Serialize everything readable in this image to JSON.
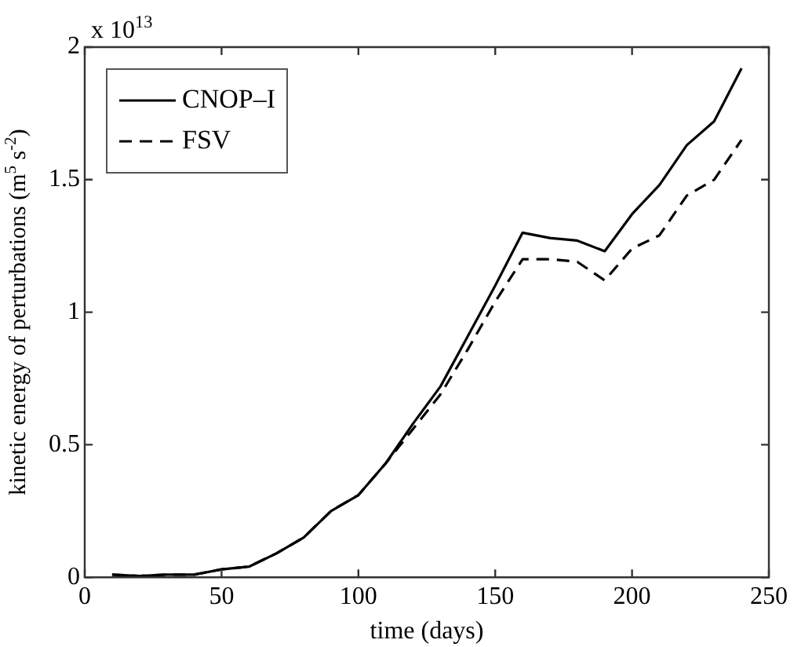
{
  "chart_data": {
    "type": "line",
    "xlabel": "time (days)",
    "ylabel": "kinetic energy of perturbations (m$^{5}$ s$^{-2}$)",
    "annotations": [
      "x 10$^{13}$"
    ],
    "x": [
      10,
      20,
      30,
      40,
      50,
      60,
      70,
      80,
      90,
      100,
      110,
      120,
      130,
      140,
      150,
      160,
      170,
      180,
      190,
      200,
      210,
      220,
      230,
      240
    ],
    "series": [
      {
        "name": "CNOP–I",
        "color": "#000000",
        "line_style": "solid",
        "values": [
          0.01,
          0.005,
          0.01,
          0.01,
          0.03,
          0.04,
          0.09,
          0.15,
          0.25,
          0.31,
          0.43,
          0.58,
          0.72,
          0.91,
          1.1,
          1.3,
          1.28,
          1.27,
          1.23,
          1.37,
          1.48,
          1.63,
          1.72,
          1.92
        ]
      },
      {
        "name": "FSV",
        "color": "#000000",
        "line_style": "dashed",
        "values": [
          0.01,
          0.005,
          0.01,
          0.01,
          0.03,
          0.04,
          0.09,
          0.15,
          0.25,
          0.31,
          0.43,
          0.56,
          0.69,
          0.86,
          1.04,
          1.2,
          1.2,
          1.19,
          1.12,
          1.24,
          1.29,
          1.44,
          1.5,
          1.65
        ]
      }
    ],
    "xlim": [
      0,
      250
    ],
    "xticks": [
      0,
      50,
      100,
      150,
      200,
      250
    ],
    "ylim": [
      0,
      2
    ],
    "yticks": [
      0,
      0.5,
      1,
      1.5,
      2
    ],
    "grid": false,
    "legend": "top left",
    "marker": "none"
  }
}
